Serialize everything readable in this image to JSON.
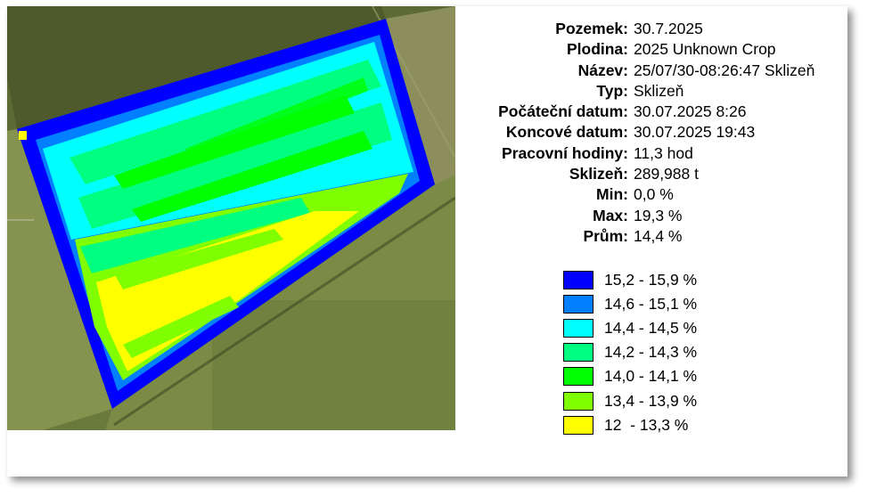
{
  "info": [
    {
      "label": "Pozemek:",
      "value": "30.7.2025"
    },
    {
      "label": "Plodina:",
      "value": "2025 Unknown Crop"
    },
    {
      "label": "Název:",
      "value": "25/07/30-08:26:47 Sklizeň"
    },
    {
      "label": "Typ:",
      "value": "Sklizeň"
    },
    {
      "label": "Počáteční datum:",
      "value": "30.07.2025 8:26"
    },
    {
      "label": "Koncové datum:",
      "value": "30.07.2025 19:43"
    },
    {
      "label": "Pracovní hodiny:",
      "value": "11,3 hod"
    },
    {
      "label": "Sklizeň:",
      "value": "289,988 t"
    },
    {
      "label": "Min:",
      "value": "0,0 %"
    },
    {
      "label": "Max:",
      "value": "19,3 %"
    },
    {
      "label": "Prům:",
      "value": "14,4 %"
    }
  ],
  "legend": [
    {
      "label": "15,2 - 15,9 %",
      "color": "#0000ff"
    },
    {
      "label": "14,6 - 15,1 %",
      "color": "#0080ff"
    },
    {
      "label": "14,4 - 14,5 %",
      "color": "#00ffff"
    },
    {
      "label": "14,2 - 14,3 %",
      "color": "#00ff80"
    },
    {
      "label": "14,0 - 14,1 %",
      "color": "#00ff00"
    },
    {
      "label": "13,4 - 13,9 %",
      "color": "#80ff00"
    },
    {
      "label": "12  - 13,3 %",
      "color": "#ffff00"
    }
  ]
}
